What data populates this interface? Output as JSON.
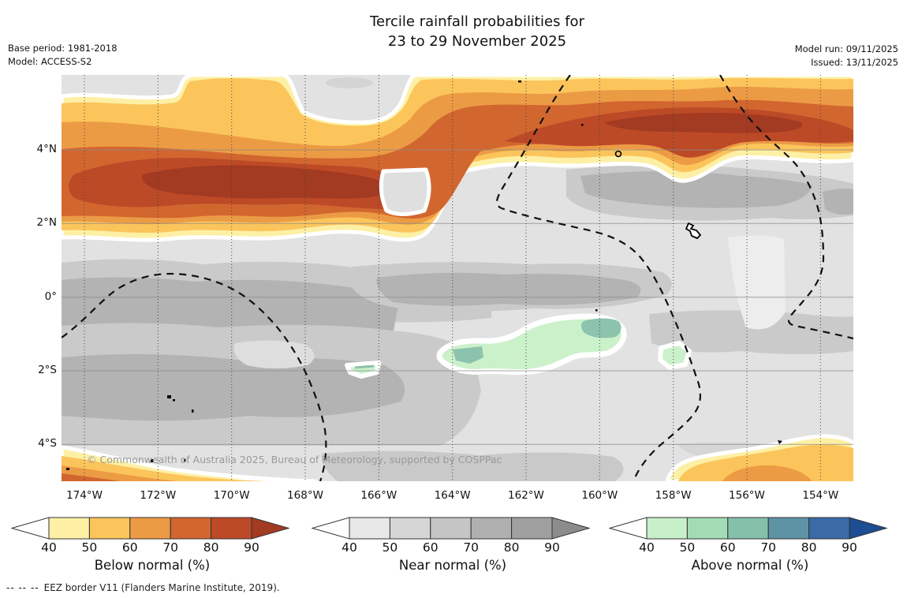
{
  "header": {
    "title_line1": "Tercile rainfall probabilities for",
    "title_line2": "23 to 29 November 2025",
    "base_period": "Base period: 1981-2018",
    "model": "Model: ACCESS-S2",
    "model_run": "Model run: 09/11/2025",
    "issued": "Issued: 13/11/2025"
  },
  "map": {
    "copyright": "© Commonwealth of Australia 2025, Bureau of Meteorology, supported by COSPPac"
  },
  "footer": {
    "eez_dashes": "--  --  --",
    "eez_note": "EEZ border V11 (Flanders Marine Institute, 2019)."
  },
  "chart_data": {
    "type": "heatmap",
    "title": "Tercile rainfall probabilities for 23 to 29 November 2025",
    "subtitle": "Weekly tercile rainfall probability outlook (filled contour map)",
    "base_period": "1981-2018",
    "model": "ACCESS-S2",
    "model_run": "09/11/2025",
    "issued": "13/11/2025",
    "axes": {
      "lon_ticks": [
        "174°W",
        "172°W",
        "170°W",
        "168°W",
        "166°W",
        "164°W",
        "162°W",
        "160°W",
        "158°W",
        "156°W",
        "154°W"
      ],
      "lat_ticks": [
        "4°N",
        "2°N",
        "0°",
        "2°S",
        "4°S"
      ],
      "lon_range": [
        "175°W",
        "153°W"
      ],
      "lat_range": [
        "6°N",
        "5°S"
      ],
      "grid": true
    },
    "colorbars": [
      {
        "label": "Below normal (%)",
        "ticks": [
          40,
          50,
          60,
          70,
          80,
          90
        ],
        "colors": [
          "#fdf0a5",
          "#fbc55c",
          "#ec9b45",
          "#d2662f",
          "#bc4a27",
          "#a33a22"
        ],
        "under_color": "#ffffff"
      },
      {
        "label": "Near normal (%)",
        "ticks": [
          40,
          50,
          60,
          70,
          80,
          90
        ],
        "colors": [
          "#e7e7e7",
          "#d6d6d6",
          "#c5c5c5",
          "#b0b0b0",
          "#a0a0a0",
          "#8c8c8c"
        ],
        "under_color": "#ffffff"
      },
      {
        "label": "Above normal (%)",
        "ticks": [
          40,
          50,
          60,
          70,
          80,
          90
        ],
        "colors": [
          "#c7efc9",
          "#a3dbb5",
          "#85c0aa",
          "#5e93a6",
          "#3b6ba5",
          "#1d4d92"
        ],
        "under_color": "#ffffff"
      }
    ],
    "features": [
      {
        "category": "below_normal",
        "description": "Continuous band of below-normal probabilities (50 to >90%) across the north of the domain from ~2°N to 6°N; darkest cores (>90%) near 173-170°W at 3-4°N and near 159-157°W at ~5°N"
      },
      {
        "category": "near_normal",
        "description": "Near-normal probabilities (40-70%, grays) cover most of the equatorial and southern domain from ~2°N to 5°S"
      },
      {
        "category": "above_normal",
        "description": "Above-normal patches (40-70%, greens) near 0.5-2°S between ~165°W and 159°W, with small teal cores and a small patch near 160°W 2°S"
      },
      {
        "category": "below_normal",
        "description": "Below-normal patches at the south-west corner (~174°W, 4.5-5°S) and south-east corner (~157-153°W, 4-5°S)"
      },
      {
        "category": "boundary",
        "description": "Dashed black EEZ border V11 polygons; small solid island outlines (e.g. near 157.5°W 2°N)"
      }
    ]
  }
}
